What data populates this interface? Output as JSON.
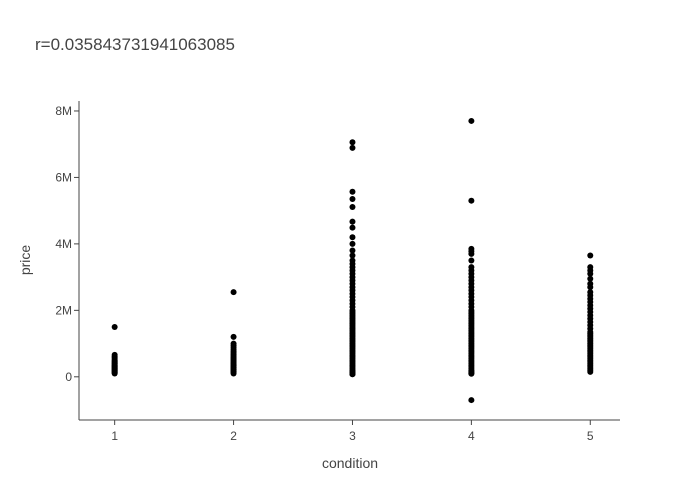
{
  "chart_data": {
    "type": "scatter",
    "title": "r=0.035843731941063085",
    "xlabel": "condition",
    "ylabel": "price",
    "x_ticks": [
      1,
      2,
      3,
      4,
      5
    ],
    "x_tick_labels": [
      "1",
      "2",
      "3",
      "4",
      "5"
    ],
    "y_ticks": [
      0,
      2000000,
      4000000,
      6000000,
      8000000
    ],
    "y_tick_labels": [
      "0",
      "2M",
      "4M",
      "6M",
      "8M"
    ],
    "xlim": [
      0.7,
      5.25
    ],
    "ylim": [
      -1300000,
      8300000
    ],
    "grid": false,
    "legend": "none",
    "marker_color": "#000000",
    "series": [
      {
        "x": [
          1,
          1,
          1,
          1,
          1,
          1,
          1,
          1,
          1,
          1,
          1,
          1,
          1,
          1,
          1,
          1,
          1,
          1,
          1,
          1,
          1,
          1,
          1,
          1
        ],
        "y": [
          1500000,
          660000,
          610000,
          580000,
          540000,
          500000,
          470000,
          440000,
          410000,
          390000,
          360000,
          340000,
          320000,
          300000,
          280000,
          260000,
          240000,
          220000,
          200000,
          180000,
          160000,
          140000,
          120000,
          100000
        ]
      },
      {
        "x": [
          2,
          2,
          2,
          2,
          2,
          2,
          2,
          2,
          2,
          2,
          2,
          2,
          2,
          2,
          2,
          2,
          2,
          2,
          2,
          2,
          2,
          2,
          2,
          2,
          2,
          2,
          2,
          2,
          2,
          2,
          2,
          2
        ],
        "y": [
          2550000,
          1200000,
          1000000,
          940000,
          880000,
          820000,
          770000,
          720000,
          680000,
          640000,
          600000,
          570000,
          540000,
          510000,
          480000,
          450000,
          420000,
          400000,
          380000,
          350000,
          330000,
          310000,
          290000,
          270000,
          250000,
          230000,
          210000,
          190000,
          170000,
          150000,
          130000,
          100000
        ]
      },
      {
        "x": [
          3,
          3,
          3,
          3,
          3,
          3,
          3,
          3,
          3,
          3,
          3,
          3,
          3,
          3,
          3,
          3,
          3,
          3,
          3,
          3,
          3,
          3,
          3,
          3,
          3,
          3,
          3,
          3,
          3,
          3,
          3,
          3,
          3,
          3,
          3,
          3,
          3,
          3,
          3,
          3,
          3,
          3,
          3,
          3,
          3,
          3,
          3,
          3,
          3,
          3,
          3,
          3,
          3,
          3,
          3,
          3,
          3,
          3,
          3,
          3,
          3,
          3,
          3,
          3,
          3,
          3,
          3,
          3,
          3,
          3
        ],
        "y": [
          7060000,
          6890000,
          5570000,
          5350000,
          5110000,
          4670000,
          4490000,
          4200000,
          4000000,
          3800000,
          3650000,
          3500000,
          3400000,
          3300000,
          3200000,
          3100000,
          3000000,
          2900000,
          2800000,
          2700000,
          2600000,
          2500000,
          2400000,
          2300000,
          2200000,
          2100000,
          2000000,
          1950000,
          1900000,
          1850000,
          1800000,
          1750000,
          1700000,
          1650000,
          1600000,
          1550000,
          1500000,
          1450000,
          1400000,
          1350000,
          1300000,
          1250000,
          1200000,
          1150000,
          1100000,
          1050000,
          1000000,
          950000,
          900000,
          850000,
          800000,
          750000,
          700000,
          650000,
          600000,
          550000,
          500000,
          450000,
          400000,
          350000,
          300000,
          250000,
          200000,
          170000,
          140000,
          120000,
          100000,
          90000,
          80000,
          75000
        ]
      },
      {
        "x": [
          4,
          4,
          4,
          4,
          4,
          4,
          4,
          4,
          4,
          4,
          4,
          4,
          4,
          4,
          4,
          4,
          4,
          4,
          4,
          4,
          4,
          4,
          4,
          4,
          4,
          4,
          4,
          4,
          4,
          4,
          4,
          4,
          4,
          4,
          4,
          4,
          4,
          4,
          4,
          4,
          4,
          4,
          4,
          4,
          4,
          4,
          4,
          4,
          4,
          4,
          4,
          4,
          4,
          4,
          4,
          4,
          4,
          4,
          4,
          4,
          4
        ],
        "y": [
          7700000,
          5300000,
          3850000,
          3780000,
          3700000,
          3500000,
          3300000,
          3200000,
          3100000,
          3000000,
          2900000,
          2800000,
          2700000,
          2600000,
          2500000,
          2400000,
          2300000,
          2200000,
          2100000,
          2000000,
          1950000,
          1900000,
          1850000,
          1800000,
          1750000,
          1700000,
          1650000,
          1600000,
          1550000,
          1500000,
          1450000,
          1400000,
          1350000,
          1300000,
          1250000,
          1200000,
          1150000,
          1100000,
          1050000,
          1000000,
          950000,
          900000,
          850000,
          800000,
          750000,
          700000,
          650000,
          600000,
          550000,
          500000,
          450000,
          400000,
          350000,
          300000,
          250000,
          200000,
          170000,
          140000,
          110000,
          90000,
          -700000
        ]
      },
      {
        "x": [
          5,
          5,
          5,
          5,
          5,
          5,
          5,
          5,
          5,
          5,
          5,
          5,
          5,
          5,
          5,
          5,
          5,
          5,
          5,
          5,
          5,
          5,
          5,
          5,
          5,
          5,
          5,
          5,
          5,
          5,
          5,
          5,
          5,
          5,
          5,
          5,
          5,
          5,
          5,
          5,
          5,
          5,
          5,
          5
        ],
        "y": [
          3650000,
          3300000,
          3200000,
          3100000,
          2950000,
          2800000,
          2700000,
          2550000,
          2450000,
          2350000,
          2250000,
          2150000,
          2050000,
          1950000,
          1850000,
          1750000,
          1650000,
          1550000,
          1450000,
          1350000,
          1300000,
          1250000,
          1200000,
          1150000,
          1100000,
          1050000,
          1000000,
          950000,
          900000,
          850000,
          800000,
          750000,
          700000,
          650000,
          600000,
          550000,
          500000,
          450000,
          400000,
          350000,
          300000,
          250000,
          200000,
          150000
        ]
      }
    ]
  }
}
